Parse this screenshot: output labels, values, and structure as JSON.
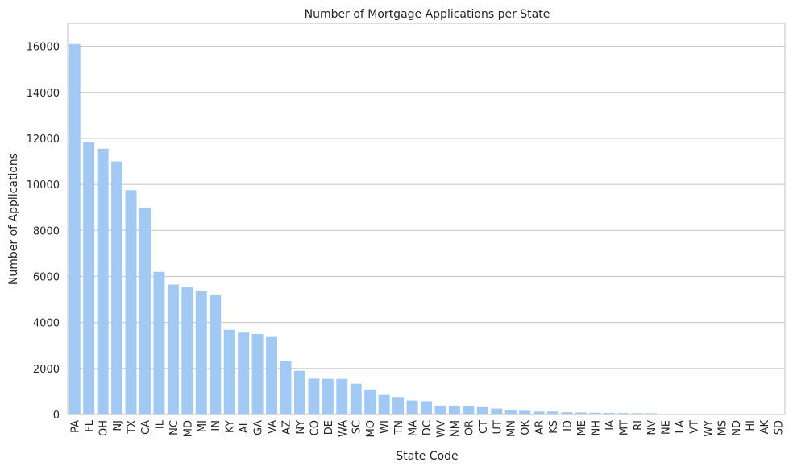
{
  "chart_data": {
    "type": "bar",
    "title": "Number of Mortgage Applications per State",
    "xlabel": "State Code",
    "ylabel": "Number of Applications",
    "ylim": [
      0,
      17000
    ],
    "yticks": [
      0,
      2000,
      4000,
      6000,
      8000,
      10000,
      12000,
      14000,
      16000
    ],
    "grid": "horizontal",
    "bar_color": "#a1c9f4",
    "categories": [
      "PA",
      "FL",
      "OH",
      "NJ",
      "TX",
      "CA",
      "IL",
      "NC",
      "MD",
      "MI",
      "IN",
      "KY",
      "AL",
      "GA",
      "VA",
      "AZ",
      "NY",
      "CO",
      "DE",
      "WA",
      "SC",
      "MO",
      "WI",
      "TN",
      "MA",
      "DC",
      "WV",
      "NM",
      "OR",
      "CT",
      "UT",
      "MN",
      "OK",
      "AR",
      "KS",
      "ID",
      "ME",
      "NH",
      "IA",
      "MT",
      "RI",
      "NV",
      "NE",
      "LA",
      "VT",
      "WY",
      "MS",
      "ND",
      "HI",
      "AK",
      "SD"
    ],
    "values": [
      16100,
      11850,
      11550,
      11000,
      9750,
      8980,
      6200,
      5650,
      5530,
      5380,
      5180,
      3680,
      3560,
      3500,
      3370,
      2310,
      1900,
      1560,
      1550,
      1550,
      1340,
      1090,
      850,
      760,
      610,
      580,
      390,
      390,
      370,
      320,
      260,
      190,
      160,
      130,
      130,
      100,
      90,
      80,
      70,
      65,
      60,
      55,
      15,
      10,
      8,
      6,
      5,
      4,
      3,
      2,
      1
    ]
  }
}
